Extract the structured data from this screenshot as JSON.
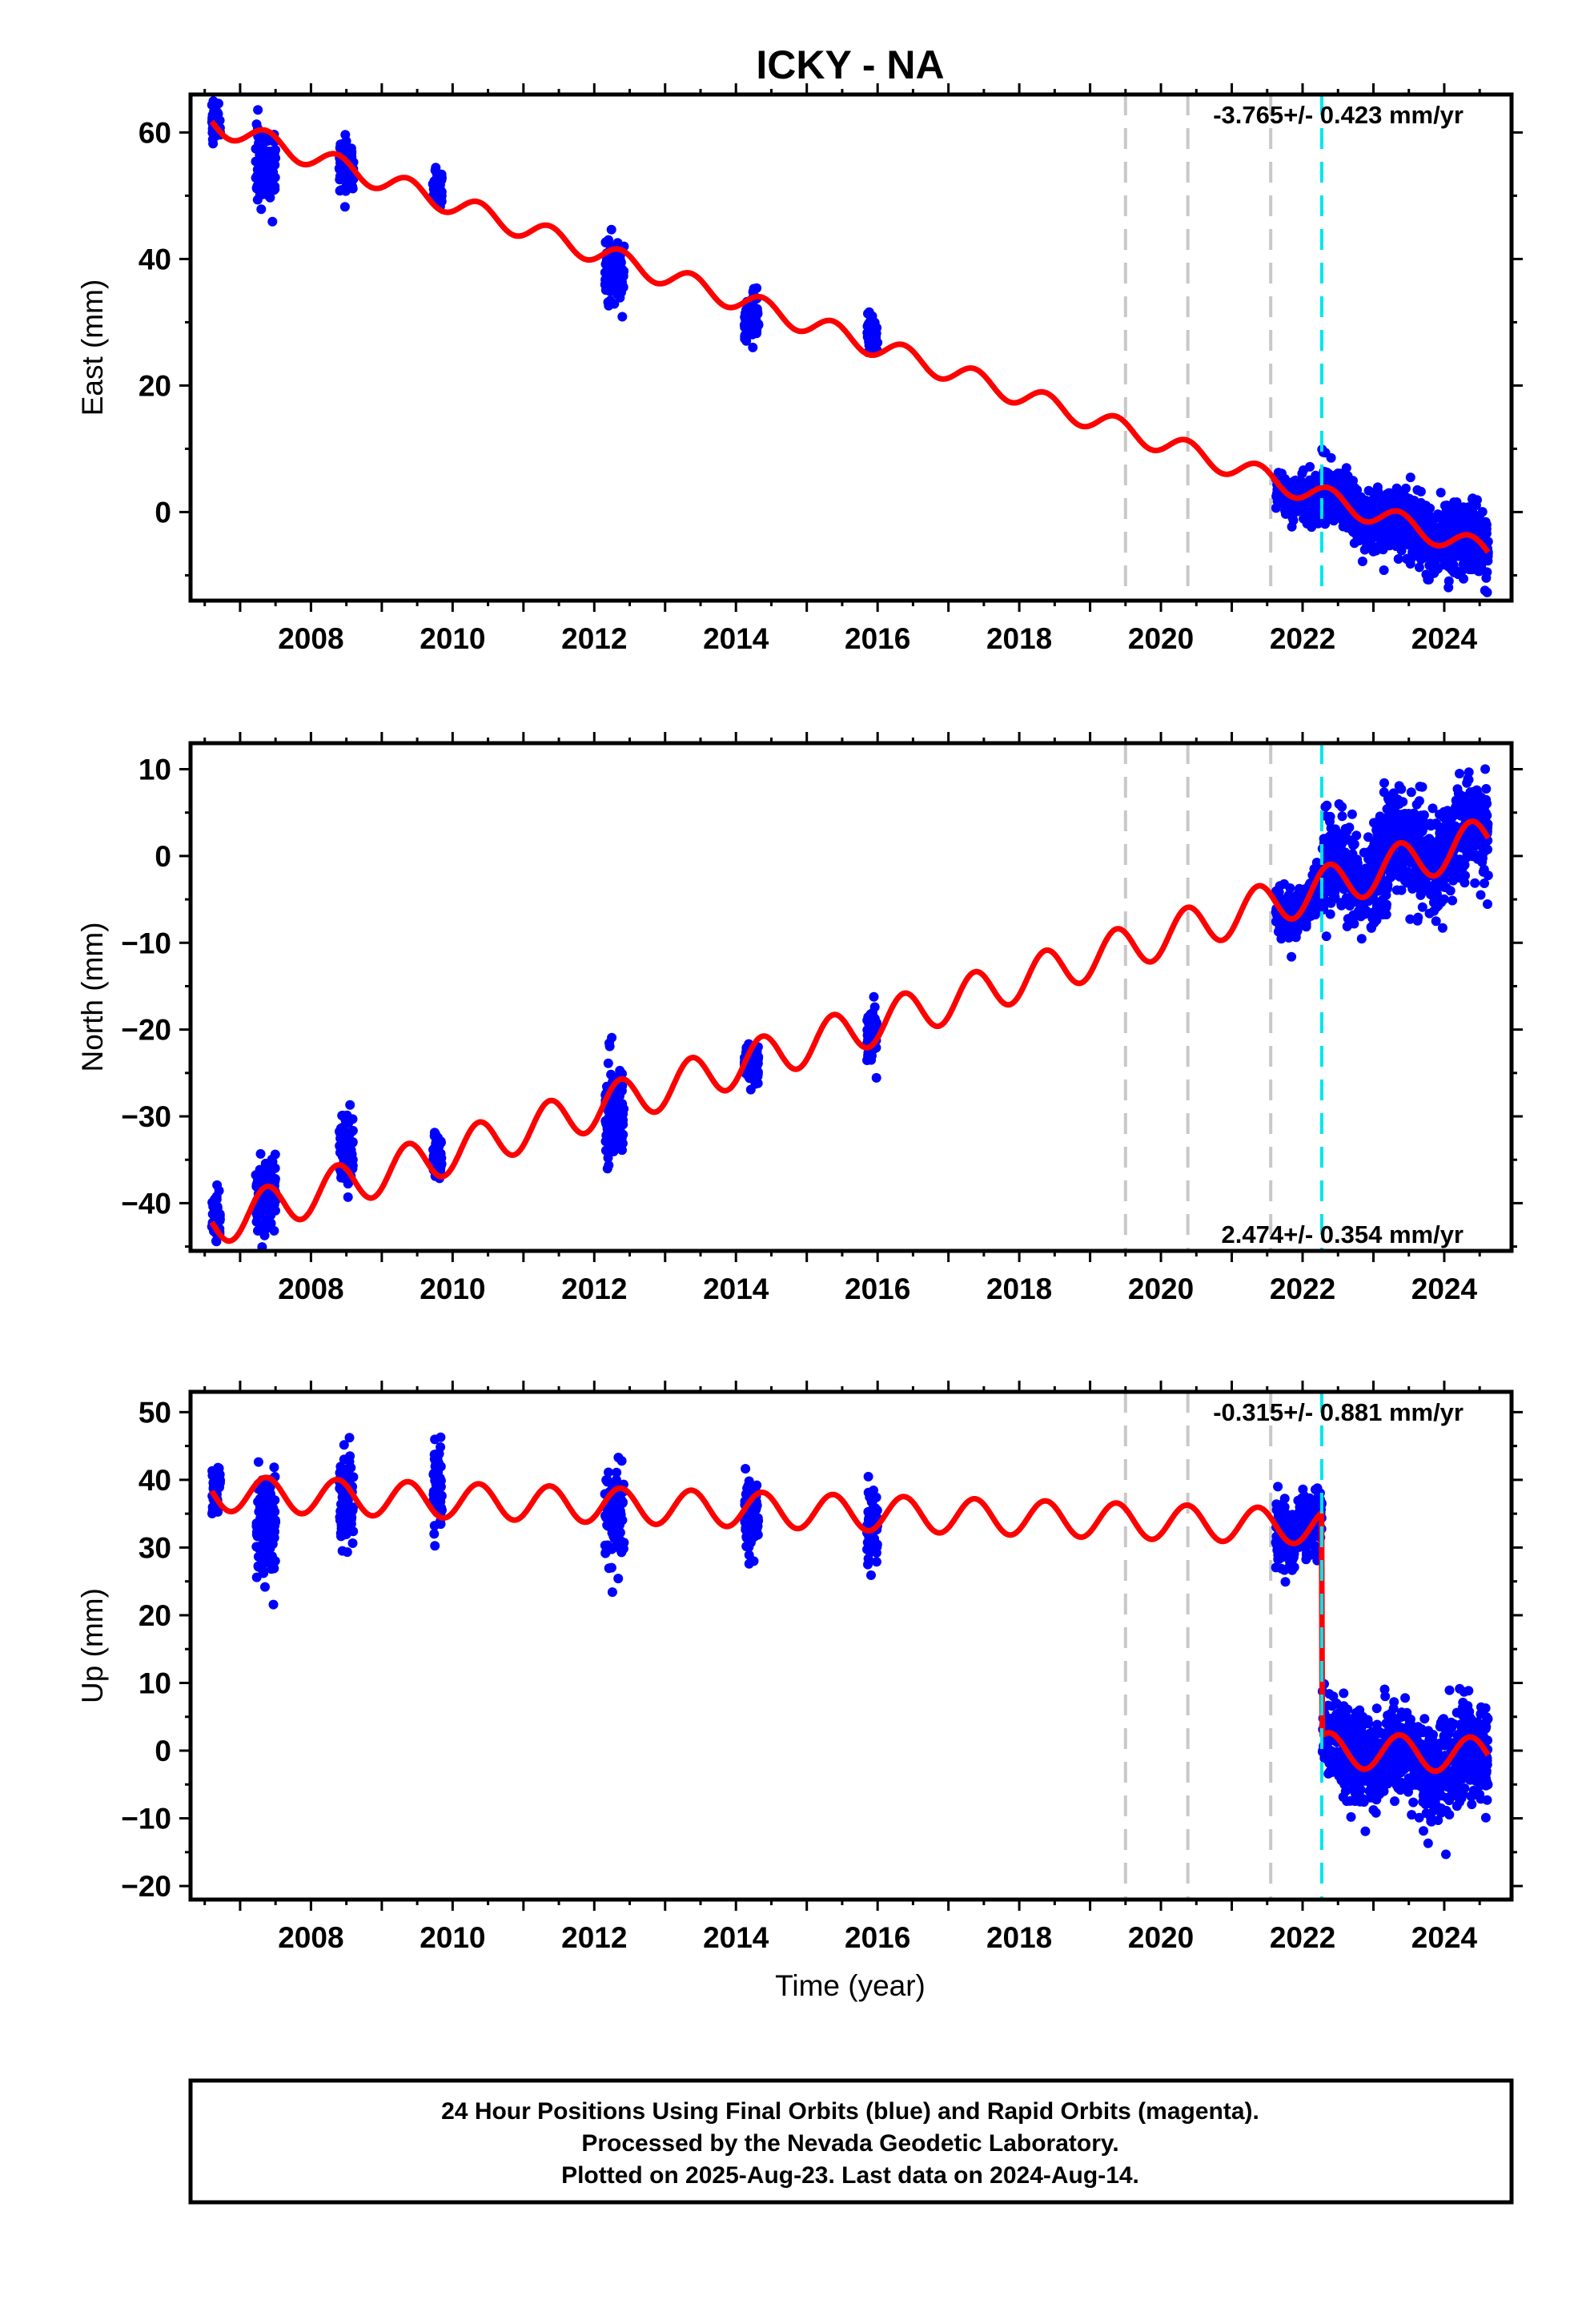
{
  "title": "ICKY - NA",
  "xlabel": "Time (year)",
  "footer": {
    "line1": "24 Hour Positions Using Final Orbits (blue) and Rapid Orbits (magenta).",
    "line2": "Processed by the Nevada Geodetic Laboratory.",
    "line3": "Plotted on 2025-Aug-23. Last data on 2024-Aug-14."
  },
  "colors": {
    "final_orbits": "#0000ff",
    "model": "#ff0000",
    "event_gray": "#c8c8c8",
    "event_cyan": "#00e5ee"
  },
  "chart_data": [
    {
      "type": "scatter",
      "ylabel": "East (mm)",
      "rate": "-3.765+/- 0.423 mm/yr",
      "rate_position": "top-right",
      "xlim": [
        2006.3,
        2024.95
      ],
      "ylim": [
        -14,
        66
      ],
      "yticks": [
        0,
        20,
        40,
        60
      ],
      "xticks": [
        2008,
        2010,
        2012,
        2014,
        2016,
        2018,
        2020,
        2022,
        2024
      ],
      "model": {
        "start": 2006.6,
        "end": 2024.62,
        "y0": 61.5,
        "rate": -3.765,
        "amp": 1.7
      },
      "observations": [
        {
          "start": 2006.6,
          "end": 2006.72,
          "center": 62.0,
          "spread": 1.5
        },
        {
          "start": 2007.22,
          "end": 2007.5,
          "center": 55.0,
          "spread": 2.6
        },
        {
          "start": 2008.4,
          "end": 2008.6,
          "center": 55.0,
          "spread": 2.0
        },
        {
          "start": 2009.72,
          "end": 2009.85,
          "center": 51.5,
          "spread": 1.4
        },
        {
          "start": 2012.15,
          "end": 2012.42,
          "center": 37.5,
          "spread": 2.4
        },
        {
          "start": 2014.12,
          "end": 2014.32,
          "center": 31.0,
          "spread": 1.8
        },
        {
          "start": 2015.85,
          "end": 2016.0,
          "center": 28.0,
          "spread": 1.4
        },
        {
          "start": 2021.62,
          "end": 2022.05,
          "center": 2.0,
          "spread": 1.6
        },
        {
          "start": 2022.05,
          "end": 2022.95,
          "center": 0.0,
          "spread": 2.2
        },
        {
          "start": 2022.95,
          "end": 2024.62,
          "center": -4.5,
          "spread": 2.8
        }
      ],
      "events_gray": [
        2019.5,
        2020.38,
        2021.55
      ],
      "events_cyan": [
        2022.27
      ]
    },
    {
      "type": "scatter",
      "ylabel": "North (mm)",
      "rate": "2.474+/- 0.354 mm/yr",
      "rate_position": "bottom-right",
      "xlim": [
        2006.3,
        2024.95
      ],
      "ylim": [
        -45.5,
        13
      ],
      "yticks": [
        -40,
        -30,
        -20,
        -10,
        0,
        10
      ],
      "xticks": [
        2008,
        2010,
        2012,
        2014,
        2016,
        2018,
        2020,
        2022,
        2024
      ],
      "model": {
        "start": 2006.6,
        "end": 2024.62,
        "y0": -42.5,
        "rate": 2.474,
        "amp": 2.5
      },
      "observations": [
        {
          "start": 2006.6,
          "end": 2006.72,
          "center": -42.0,
          "spread": 1.6
        },
        {
          "start": 2007.22,
          "end": 2007.5,
          "center": -39.0,
          "spread": 2.2
        },
        {
          "start": 2008.4,
          "end": 2008.6,
          "center": -34.0,
          "spread": 2.4
        },
        {
          "start": 2009.72,
          "end": 2009.85,
          "center": -34.5,
          "spread": 1.6
        },
        {
          "start": 2012.15,
          "end": 2012.42,
          "center": -29.0,
          "spread": 3.0
        },
        {
          "start": 2014.12,
          "end": 2014.32,
          "center": -24.0,
          "spread": 1.2
        },
        {
          "start": 2015.85,
          "end": 2016.0,
          "center": -20.5,
          "spread": 1.6
        },
        {
          "start": 2021.62,
          "end": 2022.3,
          "center": -7.0,
          "spread": 1.4
        },
        {
          "start": 2022.3,
          "end": 2023.0,
          "center": 0.5,
          "spread": 2.6
        },
        {
          "start": 2023.0,
          "end": 2024.62,
          "center": 3.5,
          "spread": 3.0
        }
      ],
      "events_gray": [
        2019.5,
        2020.38,
        2021.55
      ],
      "events_cyan": [
        2022.27
      ]
    },
    {
      "type": "scatter",
      "ylabel": "Up (mm)",
      "rate": "-0.315+/- 0.881 mm/yr",
      "rate_position": "top-right",
      "xlim": [
        2006.3,
        2024.95
      ],
      "ylim": [
        -22,
        53
      ],
      "yticks": [
        -20,
        -10,
        0,
        10,
        20,
        30,
        40,
        50
      ],
      "xticks": [
        2008,
        2010,
        2012,
        2014,
        2016,
        2018,
        2020,
        2022,
        2024
      ],
      "model": {
        "start": 2006.6,
        "end": 2024.62,
        "y0": 38.0,
        "rate": -0.315,
        "amp": 2.6,
        "step_time": 2022.27,
        "step": -33.0
      },
      "observations": [
        {
          "start": 2006.6,
          "end": 2006.72,
          "center": 39.0,
          "spread": 2.0
        },
        {
          "start": 2007.22,
          "end": 2007.5,
          "center": 33.0,
          "spread": 4.0
        },
        {
          "start": 2008.4,
          "end": 2008.6,
          "center": 37.0,
          "spread": 3.5
        },
        {
          "start": 2009.72,
          "end": 2009.85,
          "center": 39.0,
          "spread": 3.5
        },
        {
          "start": 2012.15,
          "end": 2012.42,
          "center": 35.0,
          "spread": 3.5
        },
        {
          "start": 2014.12,
          "end": 2014.32,
          "center": 35.0,
          "spread": 3.0
        },
        {
          "start": 2015.85,
          "end": 2016.0,
          "center": 33.0,
          "spread": 2.5
        },
        {
          "start": 2021.62,
          "end": 2022.27,
          "center": 34.5,
          "spread": 2.5
        },
        {
          "start": 2022.28,
          "end": 2023.05,
          "center": 0.0,
          "spread": 3.5
        },
        {
          "start": 2023.05,
          "end": 2024.62,
          "center": -5.0,
          "spread": 3.5
        }
      ],
      "events_gray": [
        2019.5,
        2020.38,
        2021.55
      ],
      "events_cyan": [
        2022.27
      ]
    }
  ]
}
